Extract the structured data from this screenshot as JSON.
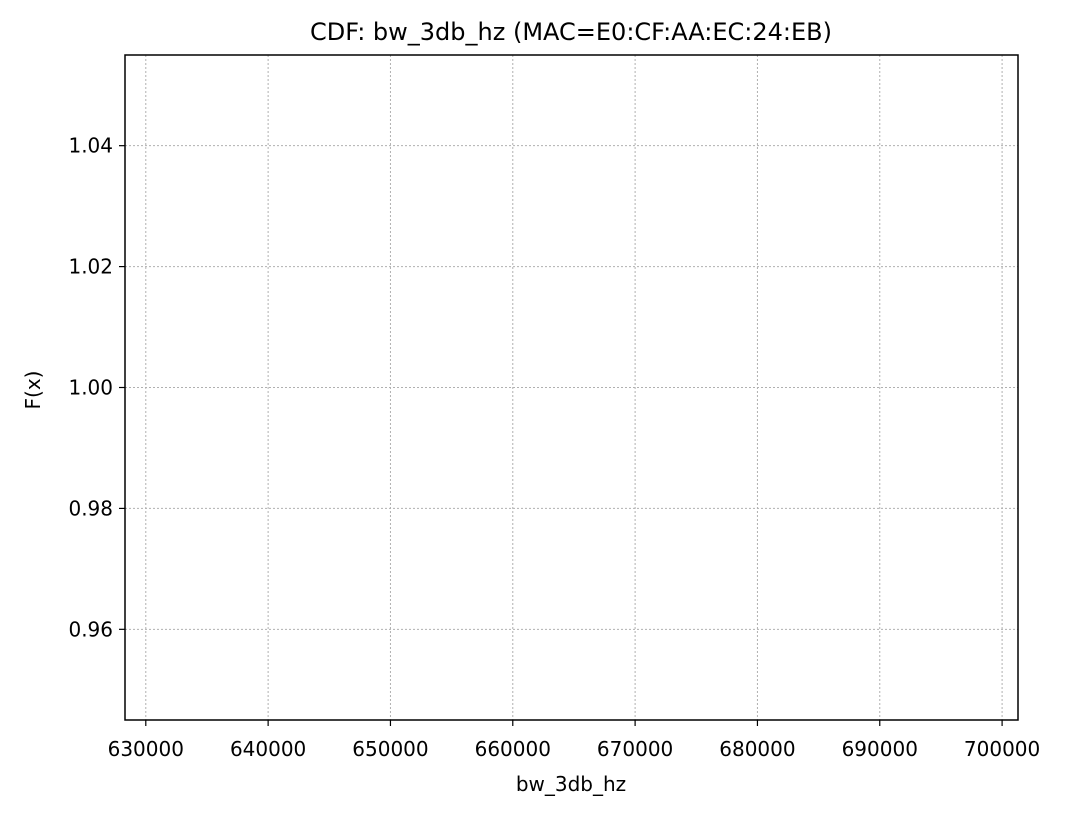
{
  "chart_data": {
    "type": "line",
    "title": "CDF: bw_3db_hz (MAC=E0:CF:AA:EC:24:EB)",
    "xlabel": "bw_3db_hz",
    "ylabel": "F(x)",
    "xlim": [
      628300,
      701300
    ],
    "ylim": [
      0.945,
      1.055
    ],
    "xticks": [
      630000,
      640000,
      650000,
      660000,
      670000,
      680000,
      690000,
      700000
    ],
    "xtick_labels": [
      "630000",
      "640000",
      "650000",
      "660000",
      "670000",
      "680000",
      "690000",
      "700000"
    ],
    "yticks": [
      0.96,
      0.98,
      1.0,
      1.02,
      1.04
    ],
    "ytick_labels": [
      "0.96",
      "0.98",
      "1.00",
      "1.02",
      "1.04"
    ],
    "grid": true,
    "series": [],
    "colors": {
      "grid": "#b0b0b0",
      "frame": "#000000",
      "background": "#ffffff"
    }
  }
}
